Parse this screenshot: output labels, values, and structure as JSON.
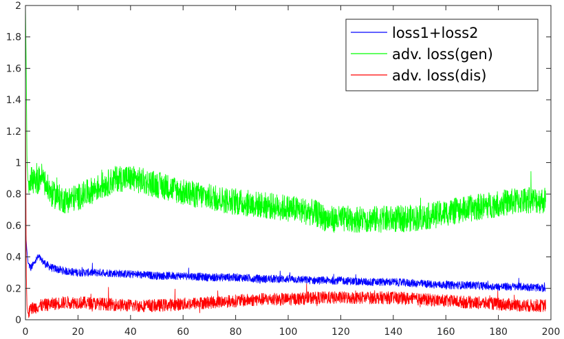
{
  "chart_data": {
    "type": "line",
    "title": "",
    "xlabel": "",
    "ylabel": "",
    "xlim": [
      0,
      200
    ],
    "ylim": [
      0,
      2
    ],
    "xticks": [
      0,
      20,
      40,
      60,
      80,
      100,
      120,
      140,
      160,
      180,
      200
    ],
    "yticks": [
      0,
      0.2,
      0.4,
      0.6,
      0.8,
      1,
      1.2,
      1.4,
      1.6,
      1.8,
      2
    ],
    "xtick_labels": [
      "0",
      "20",
      "40",
      "60",
      "80",
      "100",
      "120",
      "140",
      "160",
      "180",
      "200"
    ],
    "ytick_labels": [
      "0",
      "0.2",
      "0.4",
      "0.6",
      "0.8",
      "1",
      "1.2",
      "1.4",
      "1.6",
      "1.8",
      "2"
    ],
    "grid": false,
    "legend_position": "top-right",
    "series": [
      {
        "name": "loss1+loss2",
        "color": "#0000ff",
        "x": [
          0,
          0.5,
          1,
          2,
          3,
          4,
          5,
          6,
          8,
          10,
          15,
          20,
          30,
          40,
          50,
          60,
          70,
          80,
          90,
          100,
          110,
          120,
          130,
          140,
          150,
          160,
          170,
          180,
          190,
          198
        ],
        "y": [
          0.58,
          0.45,
          0.36,
          0.33,
          0.35,
          0.38,
          0.4,
          0.38,
          0.35,
          0.33,
          0.31,
          0.3,
          0.3,
          0.29,
          0.28,
          0.28,
          0.27,
          0.27,
          0.26,
          0.26,
          0.25,
          0.25,
          0.24,
          0.24,
          0.23,
          0.22,
          0.22,
          0.21,
          0.21,
          0.2
        ]
      },
      {
        "name": "adv. loss(gen)",
        "color": "#00ff00",
        "x": [
          0,
          0.3,
          0.6,
          1,
          2,
          4,
          6,
          8,
          10,
          15,
          20,
          25,
          30,
          35,
          40,
          45,
          50,
          55,
          60,
          70,
          80,
          90,
          100,
          110,
          115,
          120,
          130,
          140,
          150,
          160,
          170,
          180,
          190,
          198
        ],
        "y": [
          2.0,
          1.6,
          1.0,
          0.88,
          0.9,
          0.86,
          0.92,
          0.85,
          0.8,
          0.76,
          0.78,
          0.82,
          0.86,
          0.9,
          0.9,
          0.88,
          0.86,
          0.84,
          0.81,
          0.78,
          0.75,
          0.73,
          0.71,
          0.68,
          0.64,
          0.64,
          0.64,
          0.64,
          0.65,
          0.68,
          0.71,
          0.74,
          0.76,
          0.76
        ]
      },
      {
        "name": "adv. loss(dis)",
        "color": "#ff0000",
        "x": [
          0,
          0.3,
          0.6,
          1,
          2,
          4,
          6,
          10,
          15,
          20,
          30,
          40,
          50,
          60,
          70,
          80,
          90,
          100,
          110,
          120,
          130,
          140,
          150,
          160,
          170,
          180,
          190,
          198
        ],
        "y": [
          1.56,
          0.3,
          0.08,
          0.04,
          0.07,
          0.08,
          0.09,
          0.1,
          0.11,
          0.11,
          0.1,
          0.09,
          0.09,
          0.1,
          0.11,
          0.12,
          0.13,
          0.13,
          0.14,
          0.14,
          0.14,
          0.14,
          0.13,
          0.12,
          0.11,
          0.1,
          0.09,
          0.09
        ]
      }
    ]
  }
}
